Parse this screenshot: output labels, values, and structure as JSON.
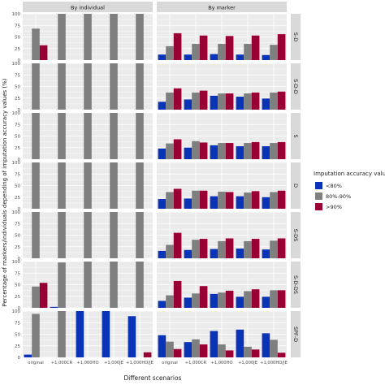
{
  "chart_data": {
    "type": "bar",
    "ylabel": "Percentage of markers/individuals depending of imputation accuracy values (%)",
    "xlabel": "Different scenarios",
    "categories": [
      "original",
      "+1,000CR",
      "+1,000HO",
      "+1,000JE",
      "+1,000HO/JE"
    ],
    "columns": [
      "By individual",
      "By marker"
    ],
    "rows": [
      "S-D",
      "S-D-D",
      "S",
      "D",
      "S-DS",
      "S-D-DS",
      "SPF-D"
    ],
    "ylim": [
      0,
      100
    ],
    "yticks": [
      0,
      25,
      50,
      75,
      100
    ],
    "legend": {
      "title": "Imputation accuracy values",
      "position": "right",
      "entries": [
        "<80%",
        "80%-90%",
        ">90%"
      ],
      "colors": [
        "#0a33b8",
        "#7f7f7f",
        "#990033"
      ]
    },
    "colors": {
      "panel_bg": "#ebebeb",
      "grid": "#ffffff",
      "strip_bg": "#d9d9d9"
    },
    "panels": [
      {
        "row": "S-D",
        "col": "By individual",
        "values": [
          [
            0,
            68,
            32
          ],
          [
            0,
            100,
            0
          ],
          [
            0,
            100,
            0
          ],
          [
            0,
            100,
            0
          ],
          [
            0,
            100,
            0
          ]
        ]
      },
      {
        "row": "S-D",
        "col": "By marker",
        "values": [
          [
            12,
            30,
            58
          ],
          [
            12,
            35,
            53
          ],
          [
            13,
            35,
            52
          ],
          [
            12,
            35,
            53
          ],
          [
            11,
            33,
            56
          ]
        ]
      },
      {
        "row": "S-D-D",
        "col": "By individual",
        "values": [
          [
            0,
            100,
            0
          ],
          [
            0,
            100,
            0
          ],
          [
            0,
            100,
            0
          ],
          [
            0,
            100,
            0
          ],
          [
            0,
            100,
            0
          ]
        ]
      },
      {
        "row": "S-D-D",
        "col": "By marker",
        "values": [
          [
            17,
            37,
            46
          ],
          [
            22,
            37,
            41
          ],
          [
            30,
            35,
            35
          ],
          [
            28,
            35,
            37
          ],
          [
            24,
            37,
            39
          ]
        ]
      },
      {
        "row": "S",
        "col": "By individual",
        "values": [
          [
            0,
            100,
            0
          ],
          [
            0,
            100,
            0
          ],
          [
            0,
            100,
            0
          ],
          [
            0,
            100,
            0
          ],
          [
            0,
            100,
            0
          ]
        ]
      },
      {
        "row": "S",
        "col": "By marker",
        "values": [
          [
            23,
            34,
            43
          ],
          [
            25,
            39,
            36
          ],
          [
            30,
            35,
            35
          ],
          [
            28,
            35,
            37
          ],
          [
            28,
            35,
            37
          ]
        ]
      },
      {
        "row": "D",
        "col": "By individual",
        "values": [
          [
            0,
            100,
            0
          ],
          [
            0,
            100,
            0
          ],
          [
            0,
            100,
            0
          ],
          [
            0,
            100,
            0
          ],
          [
            0,
            100,
            0
          ]
        ]
      },
      {
        "row": "D",
        "col": "By marker",
        "values": [
          [
            21,
            36,
            43
          ],
          [
            22,
            39,
            39
          ],
          [
            27,
            37,
            36
          ],
          [
            27,
            35,
            38
          ],
          [
            25,
            36,
            39
          ]
        ]
      },
      {
        "row": "S-DS",
        "col": "By individual",
        "values": [
          [
            0,
            100,
            0
          ],
          [
            0,
            100,
            0
          ],
          [
            0,
            100,
            0
          ],
          [
            0,
            100,
            0
          ],
          [
            0,
            100,
            0
          ]
        ]
      },
      {
        "row": "S-DS",
        "col": "By marker",
        "values": [
          [
            16,
            29,
            55
          ],
          [
            18,
            40,
            42
          ],
          [
            20,
            37,
            43
          ],
          [
            21,
            37,
            42
          ],
          [
            19,
            38,
            43
          ]
        ]
      },
      {
        "row": "S-D-DS",
        "col": "By individual",
        "values": [
          [
            0,
            46,
            54
          ],
          [
            2,
            98,
            0
          ],
          [
            0,
            100,
            0
          ],
          [
            0,
            100,
            0
          ],
          [
            0,
            100,
            0
          ]
        ]
      },
      {
        "row": "S-D-DS",
        "col": "By marker",
        "values": [
          [
            15,
            27,
            58
          ],
          [
            22,
            31,
            47
          ],
          [
            30,
            33,
            37
          ],
          [
            24,
            36,
            40
          ],
          [
            24,
            38,
            38
          ]
        ]
      },
      {
        "row": "SPF-D",
        "col": "By individual",
        "values": [
          [
            6,
            94,
            0
          ],
          [
            0,
            100,
            0
          ],
          [
            100,
            0,
            0
          ],
          [
            100,
            0,
            0
          ],
          [
            89,
            0,
            11
          ]
        ]
      },
      {
        "row": "SPF-D",
        "col": "By marker",
        "values": [
          [
            48,
            34,
            18
          ],
          [
            33,
            39,
            28
          ],
          [
            57,
            28,
            15
          ],
          [
            60,
            23,
            17
          ],
          [
            52,
            38,
            10
          ]
        ]
      }
    ]
  }
}
